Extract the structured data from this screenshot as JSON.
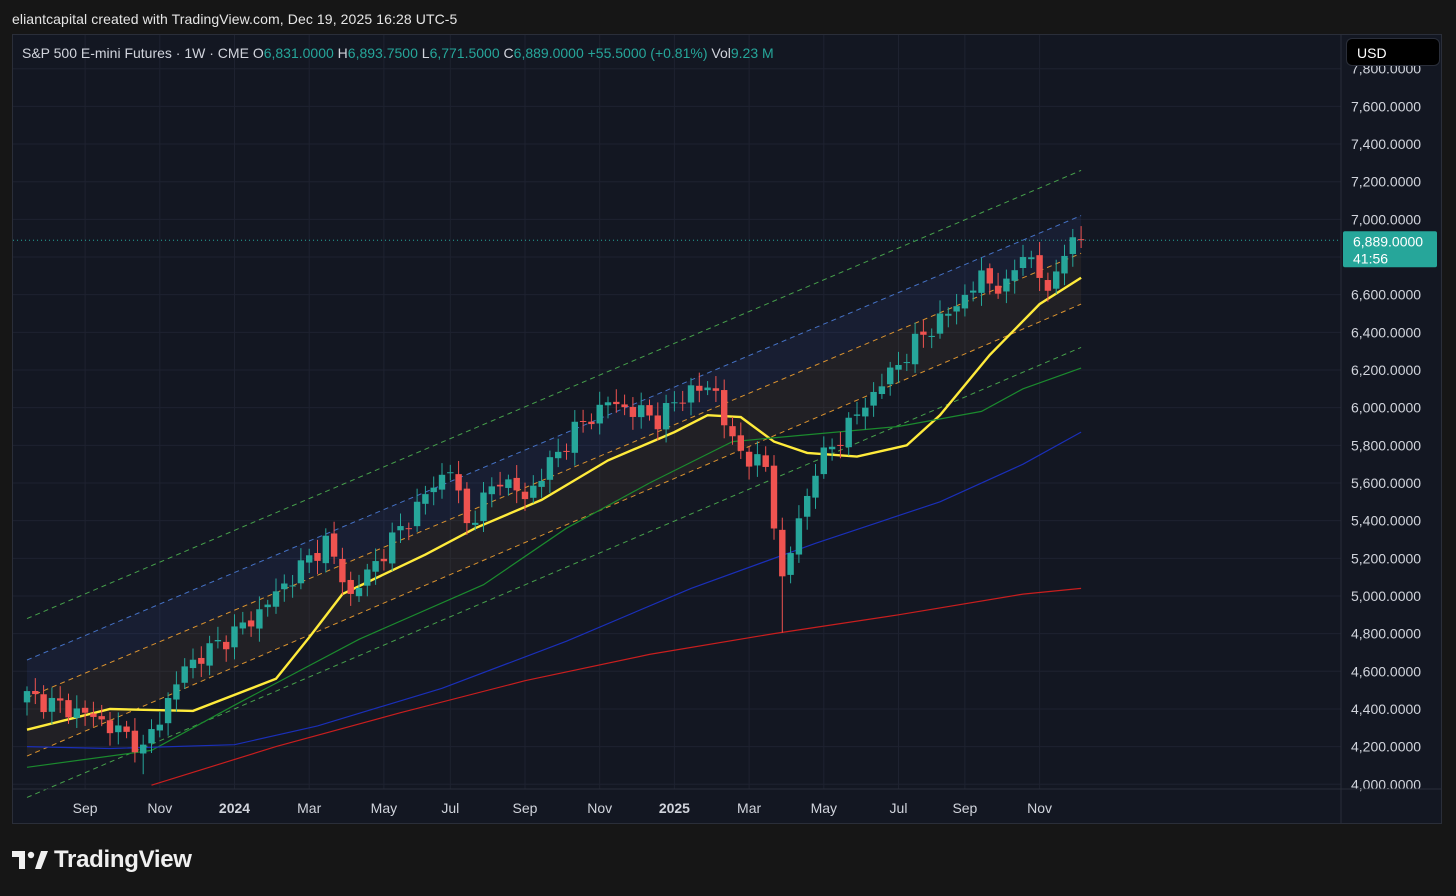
{
  "header": {
    "attribution": "eliantcapital created with TradingView.com, Dec 19, 2025 16:28 UTC-5"
  },
  "legend": {
    "symbol": "S&P 500 E-mini Futures · 1W · CME",
    "open_label": "O",
    "open": "6,831.0000",
    "high_label": "H",
    "high": "6,893.7500",
    "low_label": "L",
    "low": "6,771.5000",
    "close_label": "C",
    "close": "6,889.0000",
    "change": "+55.5000 (+0.81%)",
    "vol_label": "Vol",
    "vol": "9.23 M"
  },
  "currency_button": {
    "label": "USD"
  },
  "price_badge": {
    "price": "6,889.0000",
    "countdown": "41:56",
    "color": "#26a69a"
  },
  "footer": {
    "logo_text": "TradingView"
  },
  "colors": {
    "up": "#26a69a",
    "down": "#ef5350",
    "ma_fast": "#ffeb3b",
    "ma_green": "#1b8a2e",
    "ma_blue": "#1a2fb8",
    "ma_red": "#c81e1e",
    "channel_upper": "#4a7bd6",
    "channel_mid": "#f0a030",
    "channel_outer": "#4caf50"
  },
  "chart_data": {
    "type": "candlestick",
    "title": "S&P 500 E-mini Futures · 1W · CME",
    "ylim": [
      4000,
      8000
    ],
    "y_ticks": [
      "4,000.0000",
      "4,200.0000",
      "4,400.0000",
      "4,600.0000",
      "4,800.0000",
      "5,000.0000",
      "5,200.0000",
      "5,400.0000",
      "5,600.0000",
      "5,800.0000",
      "6,000.0000",
      "6,200.0000",
      "6,400.0000",
      "6,600.0000",
      "6,800.0000",
      "7,000.0000",
      "7,200.0000",
      "7,400.0000",
      "7,600.0000",
      "7,800.0000"
    ],
    "y_tick_values": [
      4000,
      4200,
      4400,
      4600,
      4800,
      5000,
      5200,
      5400,
      5600,
      5800,
      6000,
      6200,
      6400,
      6600,
      6800,
      7000,
      7200,
      7400,
      7600,
      7800
    ],
    "x_labels": [
      {
        "label": "Sep",
        "week": 7,
        "bold": false
      },
      {
        "label": "Nov",
        "week": 16,
        "bold": false
      },
      {
        "label": "2024",
        "week": 25,
        "bold": true
      },
      {
        "label": "Mar",
        "week": 34,
        "bold": false
      },
      {
        "label": "May",
        "week": 43,
        "bold": false
      },
      {
        "label": "Jul",
        "week": 51,
        "bold": false
      },
      {
        "label": "Sep",
        "week": 60,
        "bold": false
      },
      {
        "label": "Nov",
        "week": 69,
        "bold": false
      },
      {
        "label": "2025",
        "week": 78,
        "bold": true
      },
      {
        "label": "Mar",
        "week": 87,
        "bold": false
      },
      {
        "label": "May",
        "week": 96,
        "bold": false
      },
      {
        "label": "Jul",
        "week": 105,
        "bold": false
      },
      {
        "label": "Sep",
        "week": 113,
        "bold": false
      },
      {
        "label": "Nov",
        "week": 122,
        "bold": false
      }
    ],
    "weeks_total": 128,
    "key_points": [
      {
        "week": 0,
        "close": 4470
      },
      {
        "week": 8,
        "close": 4360
      },
      {
        "week": 13,
        "close": 4230
      },
      {
        "week": 14,
        "close": 4180
      },
      {
        "week": 19,
        "close": 4620
      },
      {
        "week": 27,
        "close": 4870
      },
      {
        "week": 36,
        "close": 5290
      },
      {
        "week": 39,
        "close": 5000
      },
      {
        "week": 49,
        "close": 5590
      },
      {
        "week": 51,
        "close": 5680
      },
      {
        "week": 53,
        "close": 5380
      },
      {
        "week": 57,
        "close": 5630
      },
      {
        "week": 60,
        "close": 5520
      },
      {
        "week": 66,
        "close": 5880
      },
      {
        "week": 70,
        "close": 6030
      },
      {
        "week": 76,
        "close": 5940
      },
      {
        "week": 80,
        "close": 6100
      },
      {
        "week": 83,
        "close": 6090
      },
      {
        "week": 85,
        "close": 5800
      },
      {
        "week": 89,
        "close": 5680
      },
      {
        "week": 91,
        "close": 5090
      },
      {
        "week": 93,
        "close": 5390
      },
      {
        "week": 95,
        "close": 5680
      },
      {
        "week": 98,
        "close": 5850
      },
      {
        "week": 103,
        "close": 6130
      },
      {
        "week": 108,
        "close": 6390
      },
      {
        "week": 111,
        "close": 6500
      },
      {
        "week": 115,
        "close": 6690
      },
      {
        "week": 118,
        "close": 6630
      },
      {
        "week": 120,
        "close": 6840
      },
      {
        "week": 123,
        "close": 6620
      },
      {
        "week": 125,
        "close": 6830
      },
      {
        "week": 127,
        "close": 6889
      }
    ],
    "moving_averages": [
      {
        "color": "#ffeb3b",
        "points": [
          [
            0,
            4290
          ],
          [
            10,
            4400
          ],
          [
            20,
            4390
          ],
          [
            30,
            4560
          ],
          [
            34,
            4780
          ],
          [
            38,
            5010
          ],
          [
            48,
            5220
          ],
          [
            54,
            5360
          ],
          [
            62,
            5510
          ],
          [
            70,
            5720
          ],
          [
            78,
            5870
          ],
          [
            82,
            5960
          ],
          [
            86,
            5950
          ],
          [
            90,
            5820
          ],
          [
            94,
            5760
          ],
          [
            100,
            5740
          ],
          [
            106,
            5800
          ],
          [
            110,
            5960
          ],
          [
            116,
            6280
          ],
          [
            122,
            6550
          ],
          [
            127,
            6690
          ]
        ]
      },
      {
        "color": "#1b8a2e",
        "points": [
          [
            0,
            4090
          ],
          [
            15,
            4180
          ],
          [
            25,
            4420
          ],
          [
            40,
            4770
          ],
          [
            55,
            5060
          ],
          [
            65,
            5360
          ],
          [
            75,
            5600
          ],
          [
            85,
            5820
          ],
          [
            95,
            5860
          ],
          [
            105,
            5900
          ],
          [
            115,
            5980
          ],
          [
            120,
            6100
          ],
          [
            127,
            6210
          ]
        ]
      },
      {
        "color": "#1a2fb8",
        "points": [
          [
            0,
            4200
          ],
          [
            10,
            4190
          ],
          [
            25,
            4210
          ],
          [
            35,
            4310
          ],
          [
            50,
            4510
          ],
          [
            65,
            4760
          ],
          [
            80,
            5040
          ],
          [
            95,
            5280
          ],
          [
            110,
            5500
          ],
          [
            120,
            5700
          ],
          [
            127,
            5870
          ]
        ]
      },
      {
        "color": "#c81e1e",
        "points": [
          [
            15,
            3995
          ],
          [
            30,
            4200
          ],
          [
            45,
            4380
          ],
          [
            60,
            4550
          ],
          [
            75,
            4690
          ],
          [
            90,
            4800
          ],
          [
            105,
            4900
          ],
          [
            120,
            5010
          ],
          [
            127,
            5040
          ]
        ]
      }
    ],
    "channel": {
      "lines": [
        {
          "role": "outer-upper",
          "color": "#4caf50",
          "start": [
            0,
            4880
          ],
          "end": [
            127,
            7260
          ]
        },
        {
          "role": "upper",
          "color": "#4a7bd6",
          "start": [
            0,
            4660
          ],
          "end": [
            127,
            7020
          ]
        },
        {
          "role": "mid",
          "color": "#f0a030",
          "start": [
            0,
            4460
          ],
          "end": [
            127,
            6820
          ]
        },
        {
          "role": "lower",
          "color": "#f0a030",
          "start": [
            0,
            4150
          ],
          "end": [
            127,
            6550
          ]
        },
        {
          "role": "outer-lower",
          "color": "#4caf50",
          "start": [
            0,
            3930
          ],
          "end": [
            127,
            6320
          ]
        }
      ]
    },
    "last_price": 6889,
    "legend_position": "top-left"
  }
}
